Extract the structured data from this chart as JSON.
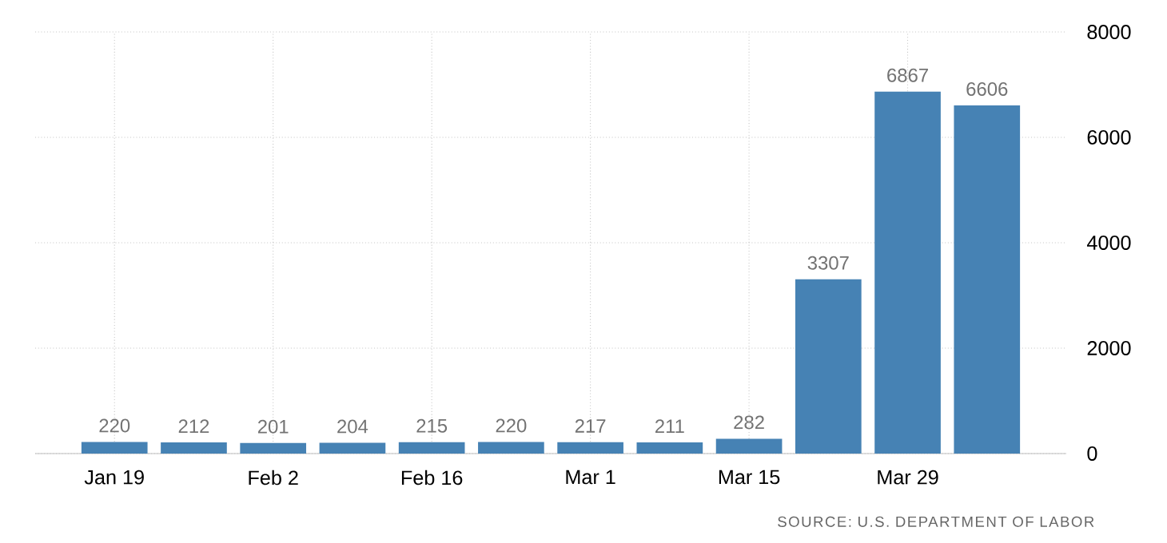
{
  "chart_data": {
    "type": "bar",
    "categories": [
      "Jan 19",
      null,
      "Feb 2",
      null,
      "Feb 16",
      null,
      "Mar 1",
      null,
      "Mar 15",
      null,
      "Mar 29",
      null
    ],
    "values": [
      220,
      212,
      201,
      204,
      215,
      220,
      217,
      211,
      282,
      3307,
      6867,
      6606
    ],
    "color": "#4682b4",
    "ylim": [
      0,
      8000
    ],
    "yticks": [
      0,
      2000,
      4000,
      6000,
      8000
    ],
    "grid": true,
    "data_labels": true,
    "annotations": [
      "SOURCE: U.S. DEPARTMENT OF LABOR"
    ]
  }
}
